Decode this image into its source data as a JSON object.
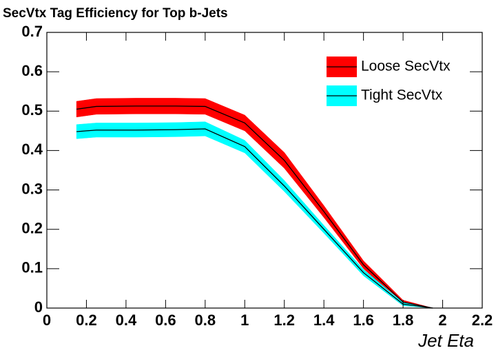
{
  "chart_data": {
    "type": "band-line",
    "title": "SecVtx Tag Efficiency for Top b-Jets",
    "x_label": "Jet Eta",
    "x": [
      0.15,
      0.25,
      0.45,
      0.65,
      0.8,
      1.0,
      1.2,
      1.4,
      1.6,
      1.8,
      1.95
    ],
    "series": [
      {
        "name": "Loose SecVtx",
        "color": "#ff0000",
        "values": [
          0.505,
          0.512,
          0.513,
          0.513,
          0.512,
          0.47,
          0.375,
          0.245,
          0.11,
          0.015,
          0.0
        ],
        "errors": [
          0.02,
          0.02,
          0.02,
          0.02,
          0.02,
          0.02,
          0.02,
          0.015,
          0.01,
          0.005,
          0.0
        ]
      },
      {
        "name": "Tight SecVtx",
        "color": "#00ffff",
        "values": [
          0.448,
          0.452,
          0.452,
          0.453,
          0.455,
          0.41,
          0.31,
          0.2,
          0.09,
          0.01,
          0.0
        ],
        "errors": [
          0.018,
          0.018,
          0.018,
          0.018,
          0.018,
          0.016,
          0.014,
          0.01,
          0.008,
          0.004,
          0.0
        ]
      }
    ],
    "xlim": [
      0,
      2.2
    ],
    "xticks": [
      0,
      0.2,
      0.4,
      0.6,
      0.8,
      1,
      1.2,
      1.4,
      1.6,
      1.8,
      2,
      2.2
    ],
    "ylim": [
      0,
      0.7
    ],
    "yticks": [
      0,
      0.1,
      0.2,
      0.3,
      0.4,
      0.5,
      0.6,
      0.7
    ],
    "legend": "top-right"
  }
}
